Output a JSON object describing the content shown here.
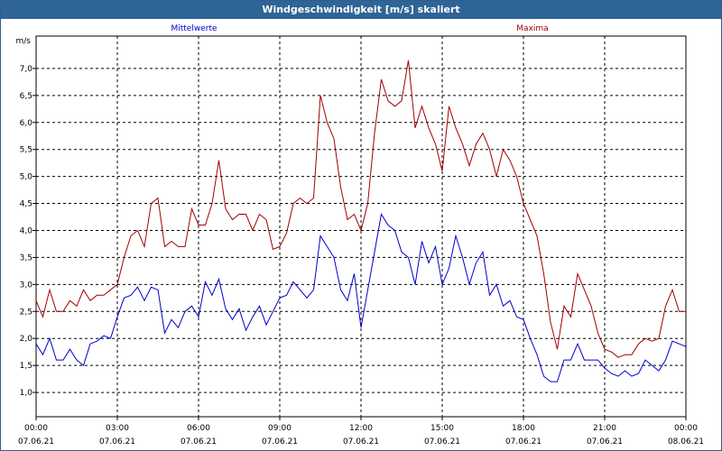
{
  "window": {
    "title": "Windgeschwindigkeit [m/s] skaliert"
  },
  "chart_data": {
    "type": "line",
    "title": "Windgeschwindigkeit [m/s] skaliert",
    "ylabel": "m/s",
    "xlabel": "",
    "ylim": [
      0.55,
      7.6
    ],
    "xlim_hours": [
      0,
      24
    ],
    "yticks": [
      "1,0",
      "1,5",
      "2,0",
      "2,5",
      "3,0",
      "3,5",
      "4,0",
      "4,5",
      "5,0",
      "5,5",
      "6,0",
      "6,5",
      "7,0"
    ],
    "ytick_values": [
      1.0,
      1.5,
      2.0,
      2.5,
      3.0,
      3.5,
      4.0,
      4.5,
      5.0,
      5.5,
      6.0,
      6.5,
      7.0
    ],
    "xticks": [
      {
        "time": "00:00",
        "date": "07.06.21"
      },
      {
        "time": "03:00",
        "date": "07.06.21"
      },
      {
        "time": "06:00",
        "date": "07.06.21"
      },
      {
        "time": "09:00",
        "date": "07.06.21"
      },
      {
        "time": "12:00",
        "date": "07.06.21"
      },
      {
        "time": "15:00",
        "date": "07.06.21"
      },
      {
        "time": "18:00",
        "date": "07.06.21"
      },
      {
        "time": "21:00",
        "date": "07.06.21"
      },
      {
        "time": "00:00",
        "date": "08.06.21"
      }
    ],
    "xtick_hours": [
      0,
      3,
      6,
      9,
      12,
      15,
      18,
      21,
      24
    ],
    "grid": true,
    "legend_position": "top",
    "series": [
      {
        "name": "Mittelwerte",
        "color": "#0000cc",
        "x": [
          0,
          0.25,
          0.5,
          0.75,
          1,
          1.25,
          1.5,
          1.75,
          2,
          2.25,
          2.5,
          2.75,
          3,
          3.25,
          3.5,
          3.75,
          4,
          4.25,
          4.5,
          4.75,
          5,
          5.25,
          5.5,
          5.75,
          6,
          6.25,
          6.5,
          6.75,
          7,
          7.25,
          7.5,
          7.75,
          8,
          8.25,
          8.5,
          8.75,
          9,
          9.25,
          9.5,
          9.75,
          10,
          10.25,
          10.5,
          10.75,
          11,
          11.25,
          11.5,
          11.75,
          12,
          12.25,
          12.5,
          12.75,
          13,
          13.25,
          13.5,
          13.75,
          14,
          14.25,
          14.5,
          14.75,
          15,
          15.25,
          15.5,
          15.75,
          16,
          16.25,
          16.5,
          16.75,
          17,
          17.25,
          17.5,
          17.75,
          18,
          18.25,
          18.5,
          18.75,
          19,
          19.25,
          19.5,
          19.75,
          20,
          20.25,
          20.5,
          20.75,
          21,
          21.25,
          21.5,
          21.75,
          22,
          22.25,
          22.5,
          22.75,
          23,
          23.25,
          23.5,
          23.75,
          24
        ],
        "values": [
          1.9,
          1.7,
          2.0,
          1.6,
          1.6,
          1.8,
          1.6,
          1.5,
          1.9,
          1.95,
          2.05,
          2.0,
          2.4,
          2.75,
          2.8,
          2.95,
          2.7,
          2.95,
          2.9,
          2.1,
          2.35,
          2.2,
          2.5,
          2.6,
          2.4,
          3.05,
          2.8,
          3.1,
          2.55,
          2.35,
          2.55,
          2.15,
          2.4,
          2.6,
          2.25,
          2.5,
          2.75,
          2.8,
          3.05,
          2.9,
          2.75,
          2.9,
          3.9,
          3.7,
          3.5,
          2.9,
          2.7,
          3.2,
          2.2,
          2.9,
          3.6,
          4.3,
          4.1,
          4.0,
          3.6,
          3.5,
          3.0,
          3.8,
          3.4,
          3.7,
          3.0,
          3.3,
          3.9,
          3.5,
          3.0,
          3.4,
          3.6,
          2.8,
          3.0,
          2.6,
          2.7,
          2.4,
          2.35,
          2.0,
          1.7,
          1.3,
          1.2,
          1.2,
          1.6,
          1.6,
          1.9,
          1.6,
          1.6,
          1.6,
          1.45,
          1.35,
          1.3,
          1.4,
          1.3,
          1.35,
          1.6,
          1.5,
          1.4,
          1.6,
          1.95,
          1.9,
          1.85
        ]
      },
      {
        "name": "Maxima",
        "color": "#a00000",
        "x": [
          0,
          0.25,
          0.5,
          0.75,
          1,
          1.25,
          1.5,
          1.75,
          2,
          2.25,
          2.5,
          2.75,
          3,
          3.25,
          3.5,
          3.75,
          4,
          4.25,
          4.5,
          4.75,
          5,
          5.25,
          5.5,
          5.75,
          6,
          6.25,
          6.5,
          6.75,
          7,
          7.25,
          7.5,
          7.75,
          8,
          8.25,
          8.5,
          8.75,
          9,
          9.25,
          9.5,
          9.75,
          10,
          10.25,
          10.5,
          10.75,
          11,
          11.25,
          11.5,
          11.75,
          12,
          12.25,
          12.5,
          12.75,
          13,
          13.25,
          13.5,
          13.75,
          14,
          14.25,
          14.5,
          14.75,
          15,
          15.25,
          15.5,
          15.75,
          16,
          16.25,
          16.5,
          16.75,
          17,
          17.25,
          17.5,
          17.75,
          18,
          18.25,
          18.5,
          18.75,
          19,
          19.25,
          19.5,
          19.75,
          20,
          20.25,
          20.5,
          20.75,
          21,
          21.25,
          21.5,
          21.75,
          22,
          22.25,
          22.5,
          22.75,
          23,
          23.25,
          23.5,
          23.75,
          24
        ],
        "values": [
          2.7,
          2.4,
          2.9,
          2.5,
          2.5,
          2.7,
          2.6,
          2.9,
          2.7,
          2.8,
          2.8,
          2.9,
          3.0,
          3.5,
          3.9,
          4.0,
          3.7,
          4.5,
          4.6,
          3.7,
          3.8,
          3.7,
          3.7,
          4.4,
          4.1,
          4.1,
          4.5,
          5.3,
          4.4,
          4.2,
          4.3,
          4.3,
          4.0,
          4.3,
          4.2,
          3.65,
          3.7,
          3.95,
          4.5,
          4.6,
          4.5,
          4.6,
          6.5,
          6.0,
          5.7,
          4.8,
          4.2,
          4.3,
          4.0,
          4.5,
          5.8,
          6.8,
          6.4,
          6.3,
          6.4,
          7.15,
          5.9,
          6.3,
          5.9,
          5.6,
          5.1,
          6.3,
          5.9,
          5.6,
          5.2,
          5.6,
          5.8,
          5.5,
          5.0,
          5.5,
          5.3,
          5.0,
          4.5,
          4.2,
          3.9,
          3.2,
          2.3,
          1.8,
          2.6,
          2.4,
          3.2,
          2.9,
          2.6,
          2.1,
          1.8,
          1.75,
          1.65,
          1.7,
          1.7,
          1.9,
          2.0,
          1.95,
          2.0,
          2.6,
          2.9,
          2.5,
          2.5
        ]
      }
    ]
  }
}
